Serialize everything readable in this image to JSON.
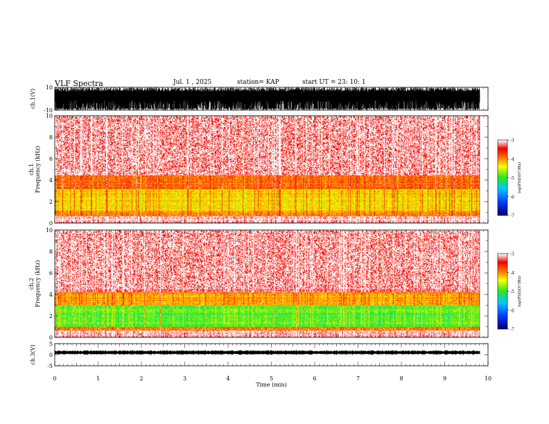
{
  "header": {
    "title": "VLF Spectra",
    "date": "Jul. 1 , 2025",
    "station": "station= KAP",
    "start": "start UT = 23: 10: 1"
  },
  "chart_data": [
    {
      "type": "line",
      "name": "ch1-waveform",
      "ylabel": "ch.1(V)",
      "ylim": [
        -10,
        10
      ],
      "yticks": [
        "10",
        "-10"
      ],
      "xlim": [
        0,
        10
      ]
    },
    {
      "type": "heatmap",
      "name": "ch1-spectrogram",
      "ylabel": "ch.1\nFrequency (kHz)",
      "ylabel_line1": "ch.1",
      "ylabel_line2": "Frequency (kHz)",
      "ylim": [
        0,
        10
      ],
      "yticks": [
        "0",
        "2",
        "4",
        "6",
        "8",
        "10"
      ],
      "xlim": [
        0,
        9.85
      ],
      "colorbar": {
        "label": "log(PSD)(V²/Hz)",
        "range": [
          -7,
          -3
        ],
        "ticks": [
          "-3",
          "-4",
          "-5",
          "-6",
          "-7"
        ]
      },
      "bands": [
        {
          "freq_khz": [
            0.7,
            1.2
          ],
          "level": -4.0
        },
        {
          "freq_khz": [
            1.2,
            3.2
          ],
          "level": -4.3
        },
        {
          "freq_khz": [
            3.2,
            4.5
          ],
          "level": -3.9
        },
        {
          "freq_khz": [
            4.5,
            10
          ],
          "level": -3.3
        }
      ]
    },
    {
      "type": "heatmap",
      "name": "ch2-spectrogram",
      "ylabel": "ch.2\nFrequency (kHz)",
      "ylabel_line1": "ch.2",
      "ylabel_line2": "Frequency (kHz)",
      "ylim": [
        0,
        10
      ],
      "yticks": [
        "0",
        "2",
        "4",
        "6",
        "8",
        "10"
      ],
      "xlim": [
        0,
        9.85
      ],
      "colorbar": {
        "label": "log(PSD)(V²/Hz)",
        "range": [
          -7,
          -3
        ],
        "ticks": [
          "-3",
          "-4",
          "-5",
          "-6",
          "-7"
        ]
      },
      "bands": [
        {
          "freq_khz": [
            0.7,
            1.0
          ],
          "level": -4.0
        },
        {
          "freq_khz": [
            1.0,
            3.0
          ],
          "level": -4.9
        },
        {
          "freq_khz": [
            3.0,
            4.2
          ],
          "level": -4.1
        },
        {
          "freq_khz": [
            4.2,
            10
          ],
          "level": -3.3
        }
      ]
    },
    {
      "type": "line",
      "name": "ch3-waveform",
      "ylabel": "ch.3(V)",
      "ylim": [
        -5,
        5
      ],
      "yticks": [
        "5",
        "0",
        "-5"
      ],
      "xlim": [
        0,
        10
      ]
    }
  ],
  "xaxis": {
    "label": "Time (min)",
    "ticks": [
      "0",
      "1",
      "2",
      "3",
      "4",
      "5",
      "6",
      "7",
      "8",
      "9",
      "10"
    ]
  }
}
